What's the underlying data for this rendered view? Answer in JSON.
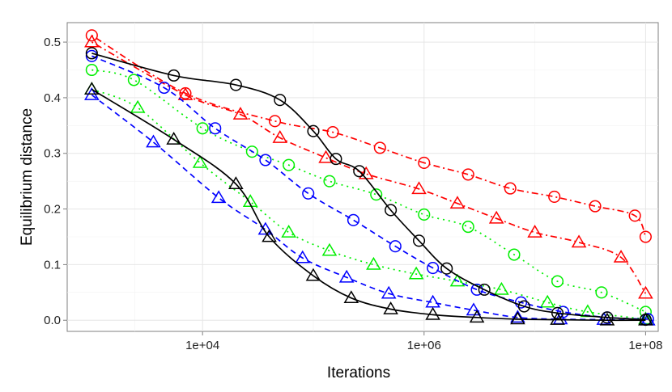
{
  "chart_data": {
    "type": "line",
    "xlabel": "Iterations",
    "ylabel": "Equilibrium distance",
    "x_scale": "log10",
    "xlim": [
      600,
      130000000
    ],
    "ylim": [
      -0.02,
      0.535
    ],
    "x_ticks": [
      10000,
      1000000,
      100000000
    ],
    "x_tick_labels": [
      "1e+04",
      "1e+06",
      "1e+08"
    ],
    "y_ticks": [
      0,
      0.1,
      0.2,
      0.3,
      0.4,
      0.5
    ],
    "y_tick_labels": [
      "0.0",
      "0.1",
      "0.2",
      "0.3",
      "0.4",
      "0.5"
    ],
    "grid": true,
    "legend": "none",
    "series": [
      {
        "color": "#ff0000",
        "line": "dotdash",
        "marker": "circle",
        "x": [
          1000,
          7000,
          45000,
          150000,
          400000,
          1000000,
          2500000,
          6000000,
          15000000,
          35000000,
          80000000,
          100000000
        ],
        "y": [
          0.512,
          0.408,
          0.358,
          0.338,
          0.31,
          0.283,
          0.262,
          0.237,
          0.222,
          0.205,
          0.188,
          0.15
        ]
      },
      {
        "color": "#ff0000",
        "line": "dotdash",
        "marker": "triangle",
        "x": [
          1000,
          7000,
          22000,
          50000,
          130000,
          300000,
          900000,
          2000000,
          4500000,
          10000000,
          25000000,
          60000000,
          100000000
        ],
        "y": [
          0.5,
          0.405,
          0.37,
          0.328,
          0.292,
          0.263,
          0.236,
          0.21,
          0.183,
          0.158,
          0.14,
          0.113,
          0.048
        ]
      },
      {
        "color": "#00ee00",
        "line": "dotted",
        "marker": "circle",
        "x": [
          1000,
          2400,
          10000,
          28000,
          60000,
          140000,
          370000,
          1000000,
          2500000,
          6500000,
          16000000,
          40000000,
          100000000
        ],
        "y": [
          0.45,
          0.432,
          0.345,
          0.303,
          0.279,
          0.25,
          0.226,
          0.19,
          0.168,
          0.118,
          0.07,
          0.05,
          0.015
        ]
      },
      {
        "color": "#00ee00",
        "line": "dotted",
        "marker": "triangle",
        "x": [
          1000,
          2600,
          9500,
          27000,
          60000,
          140000,
          350000,
          850000,
          2000000,
          5000000,
          13000000,
          30000000,
          100000000
        ],
        "y": [
          0.415,
          0.382,
          0.283,
          0.213,
          0.158,
          0.125,
          0.1,
          0.083,
          0.07,
          0.055,
          0.032,
          0.015,
          0.002
        ]
      },
      {
        "color": "#0000ff",
        "line": "dashed",
        "marker": "circle",
        "x": [
          1000,
          4500,
          13000,
          37000,
          90000,
          230000,
          550000,
          1200000,
          3000000,
          7500000,
          18000000,
          45000000,
          105000000
        ],
        "y": [
          0.475,
          0.418,
          0.345,
          0.288,
          0.228,
          0.18,
          0.133,
          0.094,
          0.055,
          0.032,
          0.015,
          0.005,
          0.002
        ]
      },
      {
        "color": "#0000ff",
        "line": "dashed",
        "marker": "triangle",
        "x": [
          1000,
          3600,
          14000,
          37000,
          80000,
          200000,
          480000,
          1200000,
          2800000,
          7000000,
          17000000,
          42000000,
          105000000
        ],
        "y": [
          0.405,
          0.32,
          0.22,
          0.163,
          0.112,
          0.077,
          0.048,
          0.032,
          0.018,
          0.005,
          0.002,
          0.001,
          0.0
        ]
      },
      {
        "color": "#000000",
        "line": "solid",
        "marker": "circle",
        "x": [
          1000,
          5500,
          20000,
          50000,
          100000,
          160000,
          260000,
          500000,
          900000,
          1600000,
          3500000,
          8000000,
          16000000,
          45000000,
          100000000
        ],
        "y": [
          0.48,
          0.44,
          0.423,
          0.396,
          0.34,
          0.29,
          0.268,
          0.198,
          0.143,
          0.093,
          0.055,
          0.025,
          0.013,
          0.005,
          0.001
        ]
      },
      {
        "color": "#000000",
        "line": "solid",
        "marker": "triangle",
        "x": [
          1000,
          5500,
          20000,
          40000,
          100000,
          220000,
          500000,
          1200000,
          3000000,
          7000000,
          16000000,
          45000000,
          100000000
        ],
        "y": [
          0.415,
          0.325,
          0.245,
          0.15,
          0.08,
          0.04,
          0.02,
          0.01,
          0.005,
          0.002,
          0.001,
          0.0,
          0.0
        ]
      }
    ]
  }
}
